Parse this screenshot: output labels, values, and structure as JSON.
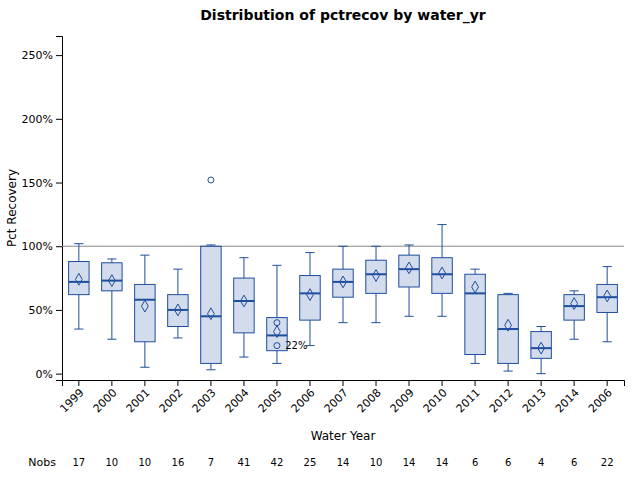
{
  "chart_data": {
    "type": "box",
    "title": "Distribution of pctrecov by water_yr",
    "x_label": "Water Year",
    "y_label": "Pct Recovery",
    "categories": [
      "1999",
      "2000",
      "2001",
      "2002",
      "2003",
      "2004",
      "2005",
      "2006",
      "2007",
      "2008",
      "2009",
      "2010",
      "2011",
      "2012",
      "2013",
      "2014",
      "2006"
    ],
    "boxes": [
      {
        "q1": 62,
        "median": 72,
        "q3": 88,
        "mean": 74,
        "whislo": 35,
        "whishi": 102,
        "fliers": []
      },
      {
        "q1": 65,
        "median": 73,
        "q3": 87,
        "mean": 73,
        "whislo": 27,
        "whishi": 90,
        "fliers": []
      },
      {
        "q1": 25,
        "median": 58,
        "q3": 70,
        "mean": 53,
        "whislo": 5,
        "whishi": 93,
        "fliers": []
      },
      {
        "q1": 37,
        "median": 50,
        "q3": 62,
        "mean": 50,
        "whislo": 28,
        "whishi": 82,
        "fliers": []
      },
      {
        "q1": 8,
        "median": 45,
        "q3": 100,
        "mean": 47,
        "whislo": 3,
        "whishi": 101,
        "fliers": [
          152
        ]
      },
      {
        "q1": 32,
        "median": 57,
        "q3": 75,
        "mean": 57,
        "whislo": 13,
        "whishi": 91,
        "fliers": []
      },
      {
        "q1": 18,
        "median": 30,
        "q3": 44,
        "mean": 33,
        "whislo": 8,
        "whishi": 85,
        "fliers": [
          40,
          22
        ]
      },
      {
        "q1": 42,
        "median": 63,
        "q3": 77,
        "mean": 62,
        "whislo": 22,
        "whishi": 95,
        "fliers": []
      },
      {
        "q1": 60,
        "median": 72,
        "q3": 82,
        "mean": 72,
        "whislo": 40,
        "whishi": 100,
        "fliers": []
      },
      {
        "q1": 63,
        "median": 78,
        "q3": 89,
        "mean": 77,
        "whislo": 40,
        "whishi": 100,
        "fliers": []
      },
      {
        "q1": 68,
        "median": 82,
        "q3": 93,
        "mean": 83,
        "whislo": 45,
        "whishi": 101,
        "fliers": []
      },
      {
        "q1": 63,
        "median": 78,
        "q3": 91,
        "mean": 79,
        "whislo": 45,
        "whishi": 117,
        "fliers": []
      },
      {
        "q1": 15,
        "median": 63,
        "q3": 78,
        "mean": 68,
        "whislo": 8,
        "whishi": 82,
        "fliers": []
      },
      {
        "q1": 8,
        "median": 35,
        "q3": 62,
        "mean": 38,
        "whislo": 2,
        "whishi": 63,
        "fliers": []
      },
      {
        "q1": 12,
        "median": 20,
        "q3": 33,
        "mean": 20,
        "whislo": 0,
        "whishi": 37,
        "fliers": []
      },
      {
        "q1": 42,
        "median": 53,
        "q3": 62,
        "mean": 55,
        "whislo": 27,
        "whishi": 65,
        "fliers": []
      },
      {
        "q1": 48,
        "median": 60,
        "q3": 70,
        "mean": 61,
        "whislo": 25,
        "whishi": 84,
        "fliers": []
      }
    ],
    "nobs_label": "Nobs",
    "nobs": [
      17,
      10,
      10,
      16,
      7,
      41,
      42,
      25,
      14,
      10,
      14,
      14,
      6,
      6,
      4,
      6,
      22
    ],
    "annotations": [
      {
        "text": "22%",
        "x": "2005",
        "y": 22
      }
    ],
    "hline_y": 100,
    "ylim": [
      -5,
      265
    ],
    "yticks": [
      {
        "value": 0,
        "label": "0%"
      },
      {
        "value": 50,
        "label": "50%"
      },
      {
        "value": 100,
        "label": "100%"
      },
      {
        "value": 150,
        "label": "150%"
      },
      {
        "value": 200,
        "label": "200%"
      },
      {
        "value": 250,
        "label": "250%"
      }
    ],
    "color": "#1f4e9e",
    "grid": false
  }
}
